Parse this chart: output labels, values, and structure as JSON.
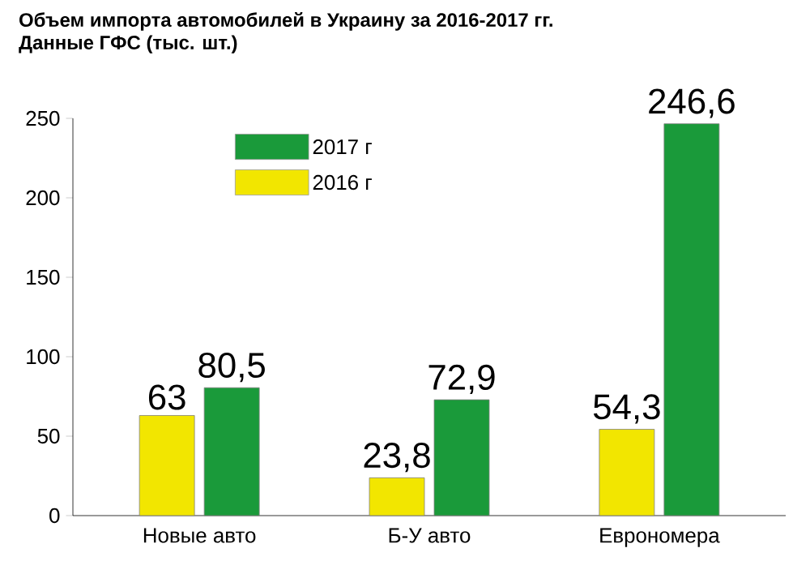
{
  "chart_data": {
    "type": "bar",
    "title": "Объем импорта автомобилей в Украину за 2016-2017 гг.",
    "subtitle": "Данные ГФС (тыс. шт.)",
    "categories": [
      "Новые авто",
      "Б-У авто",
      "Еврономера"
    ],
    "series": [
      {
        "name": "2016 г",
        "color": "#f2e600",
        "values": [
          63,
          23.8,
          54.3
        ],
        "value_labels": [
          "63",
          "23,8",
          "54,3"
        ]
      },
      {
        "name": "2017 г",
        "color": "#1a9a3a",
        "values": [
          80.5,
          72.9,
          246.6
        ],
        "value_labels": [
          "80,5",
          "72,9",
          "246,6"
        ]
      }
    ],
    "ylim": [
      0,
      250
    ],
    "yticks": [
      0,
      50,
      100,
      150,
      200,
      250
    ],
    "grid": false,
    "legend": "top left"
  }
}
